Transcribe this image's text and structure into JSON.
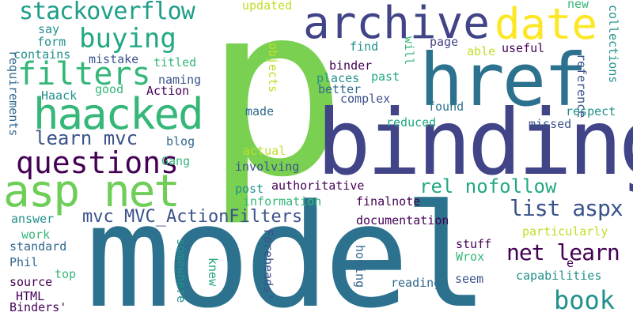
{
  "palette": {
    "dark_purple": "#440154",
    "indigo": "#3b528b",
    "blue": "#31688e",
    "teal_blue": "#2c728e",
    "teal": "#21918c",
    "green_teal": "#1f9e89",
    "green": "#35b779",
    "light_green": "#6ece58",
    "lime": "#90d743",
    "yellow": "#fde725"
  },
  "words": [
    {
      "text": "model",
      "color": "#2c728e"
    },
    {
      "text": "p",
      "color": "#7ad151"
    },
    {
      "text": "binding",
      "color": "#414487"
    },
    {
      "text": "href",
      "color": "#2c728e"
    },
    {
      "text": "archive",
      "color": "#414487"
    },
    {
      "text": "date",
      "color": "#fde725"
    },
    {
      "text": "asp net",
      "color": "#6ece58"
    },
    {
      "text": "haacked",
      "color": "#35b779"
    },
    {
      "text": "questions",
      "color": "#440154"
    },
    {
      "text": "filters",
      "color": "#35b779"
    },
    {
      "text": "buying",
      "color": "#22a884"
    },
    {
      "text": "stackoverflow",
      "color": "#1f9e89"
    },
    {
      "text": "book",
      "color": "#21918c"
    },
    {
      "text": "net learn",
      "color": "#440154"
    },
    {
      "text": "list aspx",
      "color": "#3b528b"
    },
    {
      "text": "rel nofollow",
      "color": "#22a884"
    },
    {
      "text": "learn mvc",
      "color": "#3b528b"
    },
    {
      "text": "mvc MVC_ActionFilters",
      "color": "#3b528b"
    },
    {
      "text": "updated",
      "color": "#bddf26"
    },
    {
      "text": "new",
      "color": "#35b779"
    },
    {
      "text": "reference",
      "color": "#3b528b"
    },
    {
      "text": "collections",
      "color": "#21918c"
    },
    {
      "text": "useful",
      "color": "#440154"
    },
    {
      "text": "able",
      "color": "#bddf26"
    },
    {
      "text": "page",
      "color": "#414487"
    },
    {
      "text": "will",
      "color": "#35b779"
    },
    {
      "text": "find",
      "color": "#21918c"
    },
    {
      "text": "past",
      "color": "#22a884"
    },
    {
      "text": "binder",
      "color": "#440154"
    },
    {
      "text": "places",
      "color": "#21918c"
    },
    {
      "text": "better",
      "color": "#31688e"
    },
    {
      "text": "complex",
      "color": "#3b528b"
    },
    {
      "text": "objects",
      "color": "#bddf26"
    },
    {
      "text": "made",
      "color": "#31688e"
    },
    {
      "text": "found",
      "color": "#2c728e"
    },
    {
      "text": "respect",
      "color": "#21918c"
    },
    {
      "text": "reduced",
      "color": "#22a884"
    },
    {
      "text": "missed",
      "color": "#3b528b"
    },
    {
      "text": "say",
      "color": "#21918c"
    },
    {
      "text": "form",
      "color": "#21918c"
    },
    {
      "text": "contains",
      "color": "#21918c"
    },
    {
      "text": "mistake",
      "color": "#3b528b"
    },
    {
      "text": "titled",
      "color": "#35b779"
    },
    {
      "text": "naming",
      "color": "#3b528b"
    },
    {
      "text": "good",
      "color": "#35b779"
    },
    {
      "text": "Haack",
      "color": "#21918c"
    },
    {
      "text": "Action",
      "color": "#440154"
    },
    {
      "text": "requirements",
      "color": "#31688e"
    },
    {
      "text": "blog",
      "color": "#31688e"
    },
    {
      "text": "Gang",
      "color": "#35b779"
    },
    {
      "text": "actual",
      "color": "#bddf26"
    },
    {
      "text": "involving",
      "color": "#3b528b"
    },
    {
      "text": "post",
      "color": "#21918c"
    },
    {
      "text": "authoritative",
      "color": "#440154"
    },
    {
      "text": "information",
      "color": "#35b779"
    },
    {
      "text": "finalnote",
      "color": "#440154"
    },
    {
      "text": "answer",
      "color": "#21918c"
    },
    {
      "text": "work",
      "color": "#35b779"
    },
    {
      "text": "standard",
      "color": "#31688e"
    },
    {
      "text": "Phil",
      "color": "#31688e"
    },
    {
      "text": "top",
      "color": "#35b779"
    },
    {
      "text": "source",
      "color": "#440154"
    },
    {
      "text": "HTML",
      "color": "#440154"
    },
    {
      "text": "Binders'",
      "color": "#440154"
    },
    {
      "text": "documentation",
      "color": "#440154"
    },
    {
      "text": "particularly",
      "color": "#bddf26"
    },
    {
      "text": "stuff",
      "color": "#440154"
    },
    {
      "text": "Wrox",
      "color": "#35b779"
    },
    {
      "text": "seem",
      "color": "#3b528b"
    },
    {
      "text": "reading",
      "color": "#31688e"
    },
    {
      "text": "hoping",
      "color": "#31688e"
    },
    {
      "text": "capabilities",
      "color": "#21918c"
    },
    {
      "text": "e",
      "color": "#440154"
    },
    {
      "text": "somewhere",
      "color": "#21918c"
    },
    {
      "text": "knew",
      "color": "#22a884"
    },
    {
      "text": "Foreheads'",
      "color": "#3b528b"
    }
  ]
}
